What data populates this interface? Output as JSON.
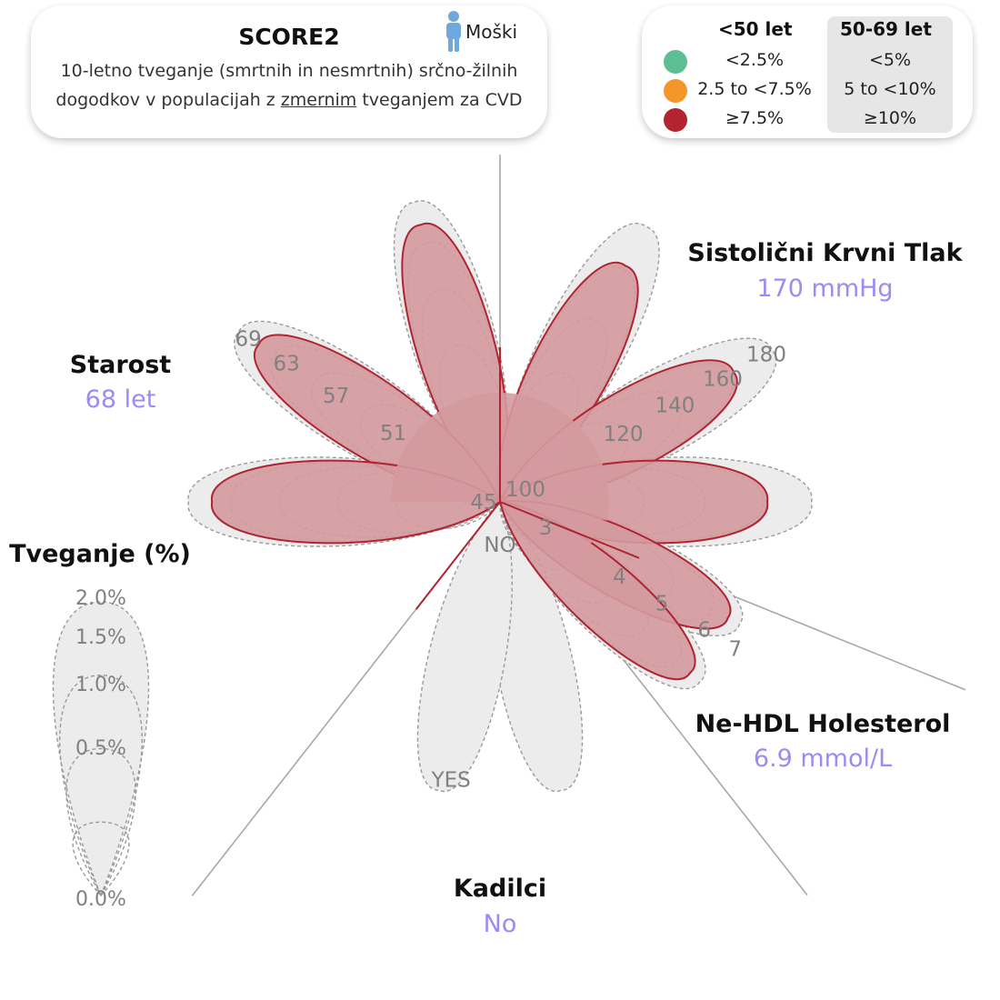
{
  "header": {
    "title": "SCORE2",
    "sex_label": "Moški",
    "subtitle_before": "10-letno tveganje (smrtnih in nesmrtnih) srčno-žilnih dogodkov v populacijah z ",
    "subtitle_underlined": "zmernim",
    "subtitle_after": " tveganjem za CVD"
  },
  "legend": {
    "col1_header": "<50 let",
    "col2_header": "50-69 let",
    "rows": [
      {
        "color": "#5cbf94",
        "col1": "<2.5%",
        "col2": "<5%"
      },
      {
        "color": "#f5962a",
        "col1": "2.5 to <7.5%",
        "col2": "5 to <10%"
      },
      {
        "color": "#b22530",
        "col1": "≥7.5%",
        "col2": "≥10%"
      }
    ]
  },
  "colors": {
    "petal_fill": "#d49a9e",
    "petal_stroke": "#b02432",
    "gray_fill": "#ececec",
    "dashed": "#9a9a9a",
    "axis_line": "#a8a8a8",
    "tick_text": "#808080",
    "value_text": "#9a8cf2"
  },
  "chart_data": {
    "type": "radial-petal",
    "variables": [
      {
        "label": "Starost",
        "value_text": "68 let",
        "value": 68,
        "ticks": [
          "45",
          "51",
          "57",
          "63",
          "69"
        ]
      },
      {
        "label": "Sistolični Krvni Tlak",
        "value_text": "170 mmHg",
        "value": 170,
        "ticks": [
          "100",
          "120",
          "140",
          "160",
          "180"
        ]
      },
      {
        "label": "Ne-HDL Holesterol",
        "value_text": "6.9 mmol/L",
        "value": 6.9,
        "ticks": [
          "3",
          "4",
          "5",
          "6",
          "7"
        ]
      },
      {
        "label": "Kadilci",
        "value_text": "No",
        "value": "NO",
        "ticks": [
          "NO",
          "YES"
        ]
      }
    ],
    "risk_scale": {
      "label": "Tveganje (%)",
      "ticks": [
        "0.0%",
        "0.5%",
        "1.0%",
        "1.5%",
        "2.0%"
      ]
    }
  }
}
